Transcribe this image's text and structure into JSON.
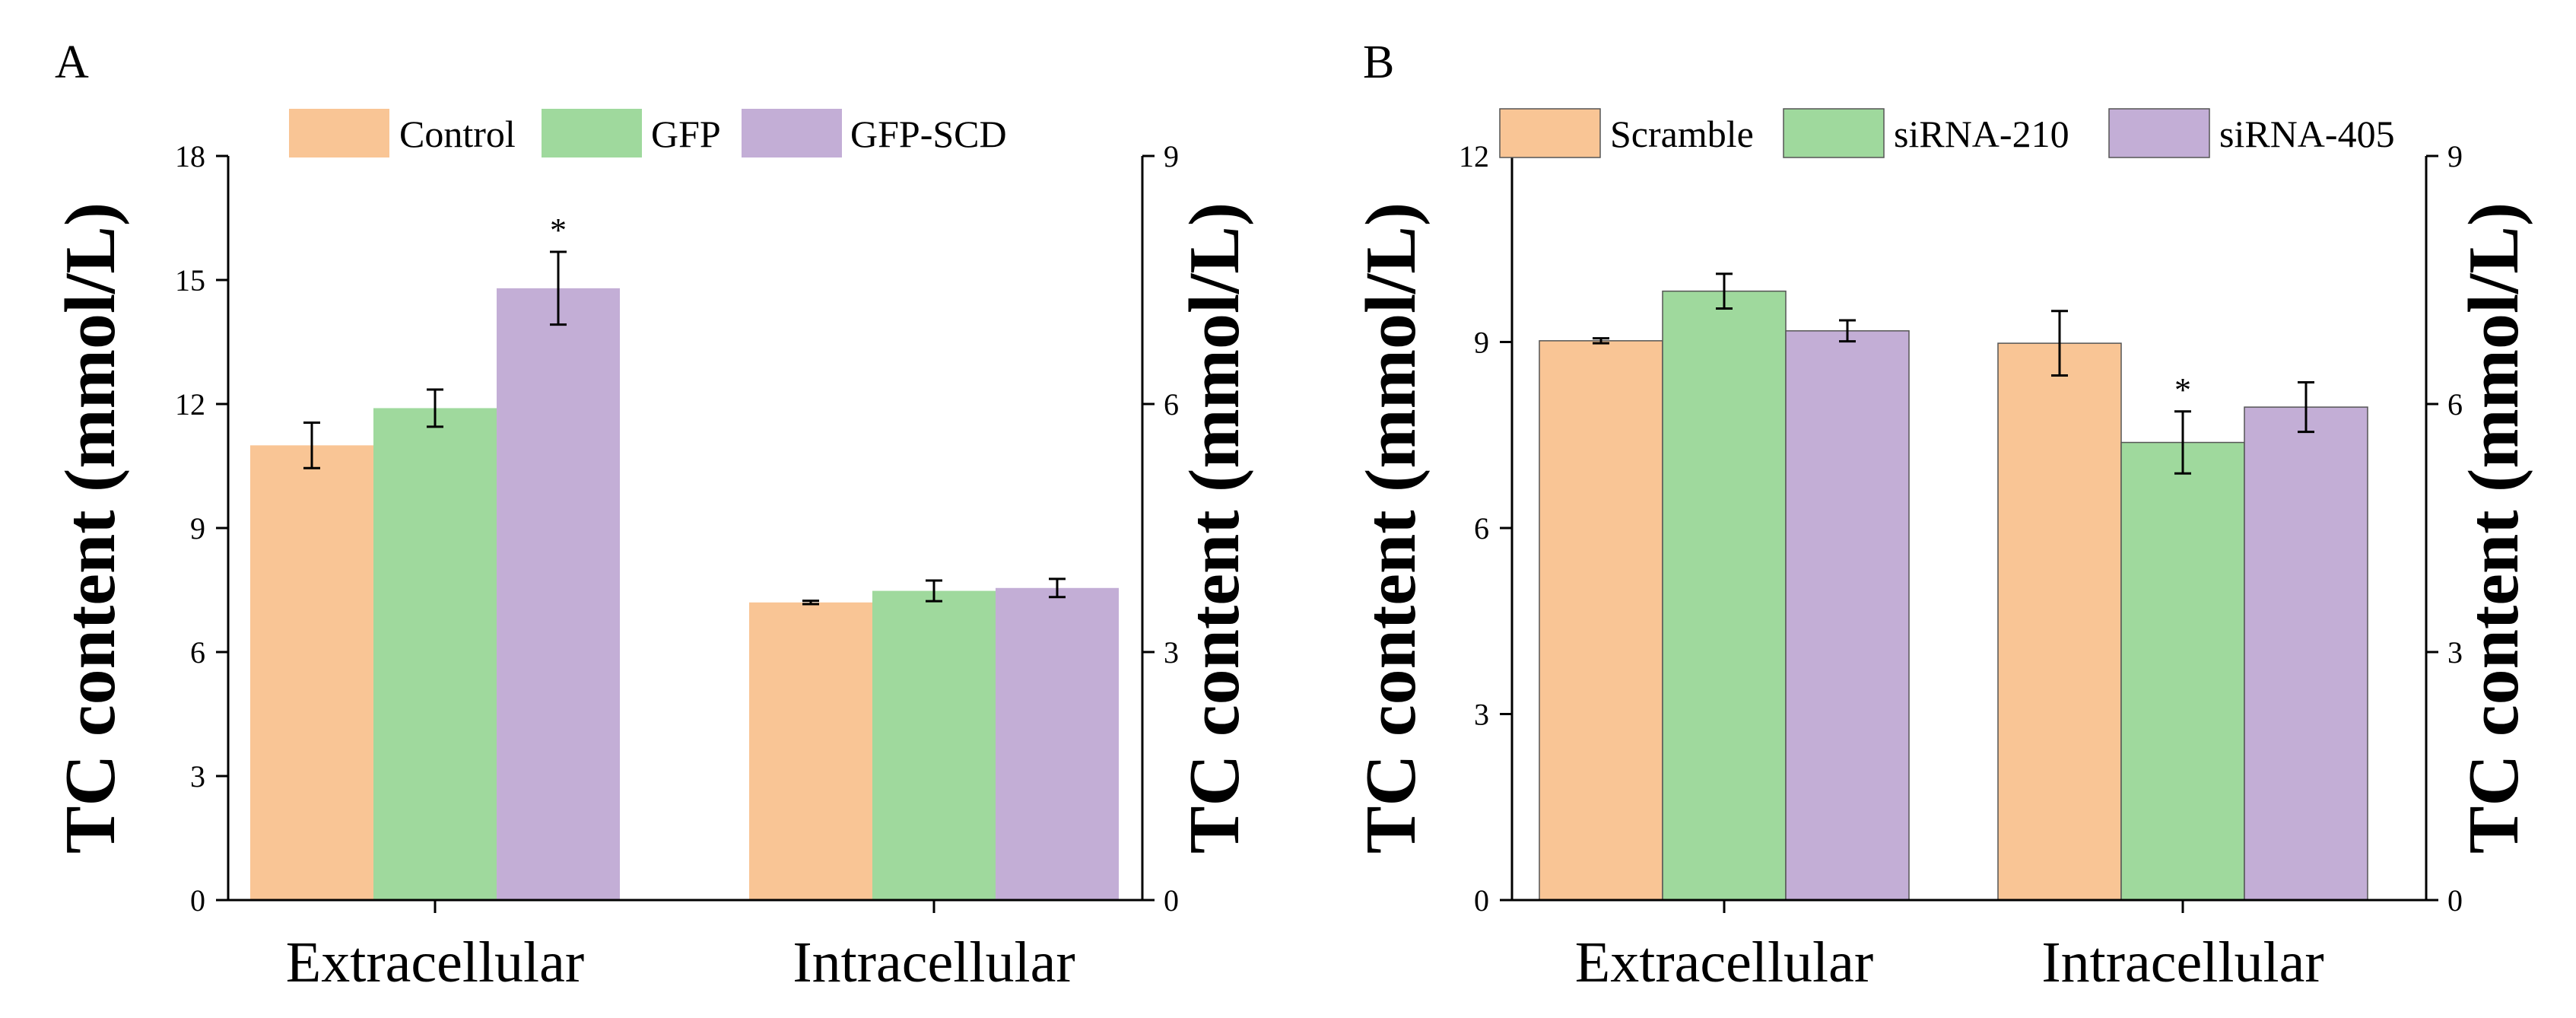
{
  "chart_data": [
    {
      "panel": "A",
      "type": "bar",
      "categories": [
        "Extracellular",
        "Intracellular"
      ],
      "series": [
        {
          "name": "Control",
          "color": "#f9c595",
          "values": [
            11.0,
            7.2
          ],
          "errors": [
            0.55,
            0.04
          ]
        },
        {
          "name": "GFP",
          "color": "#9fd99d",
          "values": [
            11.9,
            7.48
          ],
          "errors": [
            0.45,
            0.25
          ]
        },
        {
          "name": "GFP-SCD",
          "color": "#c3aed6",
          "values": [
            14.8,
            7.55
          ],
          "errors": [
            0.88,
            0.22
          ]
        }
      ],
      "significance": [
        {
          "category": "Extracellular",
          "series": "GFP-SCD",
          "mark": "*"
        }
      ],
      "ylabel": "TC content (mmol/L)",
      "ylim": [
        0,
        18
      ],
      "yticks": [
        "0",
        "3",
        "6",
        "9",
        "12",
        "15",
        "18"
      ],
      "y2label": "TC content (mmol/L)",
      "y2lim": [
        0,
        9
      ],
      "y2ticks": [
        "0",
        "3",
        "6",
        "9"
      ],
      "legend_position": "top"
    },
    {
      "panel": "B",
      "type": "bar",
      "categories": [
        "Extracellular",
        "Intracellular"
      ],
      "series": [
        {
          "name": "Scramble",
          "color": "#f9c595",
          "values": [
            9.02,
            8.98
          ],
          "errors": [
            0.04,
            0.52
          ]
        },
        {
          "name": "siRNA-210",
          "color": "#9fd99d",
          "values": [
            9.82,
            7.38
          ],
          "errors": [
            0.28,
            0.5
          ]
        },
        {
          "name": "siRNA-405",
          "color": "#c3aed6",
          "values": [
            9.18,
            7.95
          ],
          "errors": [
            0.17,
            0.4
          ]
        }
      ],
      "significance": [
        {
          "category": "Intracellular",
          "series": "siRNA-210",
          "mark": "*"
        }
      ],
      "ylabel": "TC content (mmol/L)",
      "ylim": [
        0,
        12
      ],
      "yticks": [
        "0",
        "3",
        "6",
        "9",
        "12"
      ],
      "y2label": "TC content (mmol/L)",
      "y2lim": [
        0,
        9
      ],
      "y2ticks": [
        "0",
        "3",
        "6",
        "9"
      ],
      "legend_position": "top"
    }
  ]
}
